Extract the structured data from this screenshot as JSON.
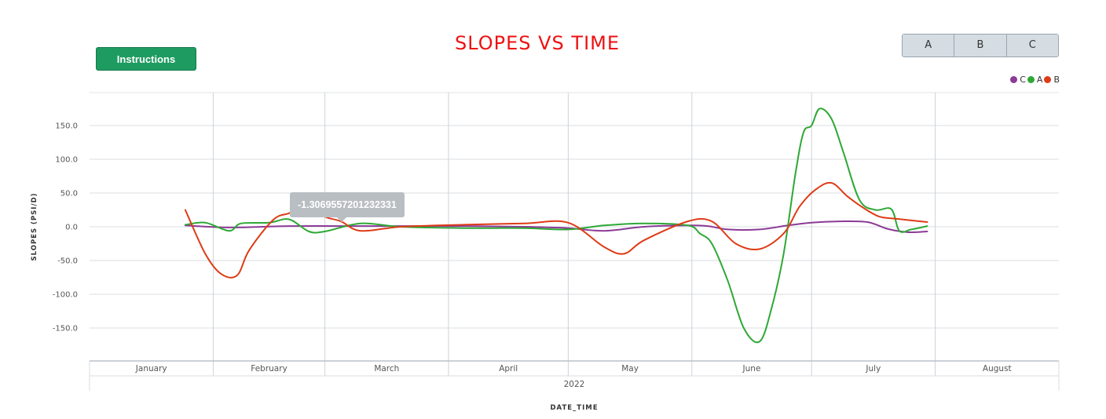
{
  "toolbar": {
    "instructions_label": "Instructions"
  },
  "selector": {
    "buttons": [
      "A",
      "B",
      "C"
    ]
  },
  "chart_data": {
    "type": "line",
    "title": "SLOPES VS TIME",
    "xlabel": "DATE_TIME",
    "ylabel": "SLOPES (PSI/D)",
    "y_ticks": [
      "150.0",
      "100.0",
      "50.0",
      "0.0",
      "-50.0",
      "-100.0",
      "-150.0"
    ],
    "ylim": [
      -200,
      200
    ],
    "x_range": [
      "2022-01-01",
      "2022-09-01"
    ],
    "months": [
      "January",
      "February",
      "March",
      "April",
      "May",
      "June",
      "July",
      "August"
    ],
    "year_label": "2022",
    "grid": true,
    "legend_position": "top-right",
    "legend": [
      {
        "name": "C",
        "color": "#8b3a96"
      },
      {
        "name": "A",
        "color": "#2ea835"
      },
      {
        "name": "B",
        "color": "#dd3b16"
      }
    ],
    "tooltip": "-1.3069557201232331",
    "series": [
      {
        "name": "C",
        "color": "#8b3a96",
        "x": [
          "2022-01-25",
          "2022-02-05",
          "2022-02-20",
          "2022-03-05",
          "2022-03-20",
          "2022-04-05",
          "2022-04-20",
          "2022-05-01",
          "2022-05-10",
          "2022-05-20",
          "2022-05-31",
          "2022-06-05",
          "2022-06-10",
          "2022-06-18",
          "2022-06-25",
          "2022-07-01",
          "2022-07-08",
          "2022-07-15",
          "2022-07-20",
          "2022-07-25",
          "2022-07-30"
        ],
        "y": [
          2,
          -1,
          1,
          1,
          1,
          1,
          0,
          -2,
          -6,
          0,
          2,
          1,
          -4,
          -4,
          2,
          6,
          8,
          7,
          -3,
          -8,
          -7
        ]
      },
      {
        "name": "A",
        "color": "#2ea835",
        "x": [
          "2022-01-25",
          "2022-01-30",
          "2022-02-05",
          "2022-02-08",
          "2022-02-15",
          "2022-02-20",
          "2022-02-25",
          "2022-03-01",
          "2022-03-10",
          "2022-03-20",
          "2022-04-05",
          "2022-04-20",
          "2022-05-01",
          "2022-05-10",
          "2022-05-20",
          "2022-05-31",
          "2022-06-03",
          "2022-06-06",
          "2022-06-10",
          "2022-06-14",
          "2022-06-18",
          "2022-06-21",
          "2022-06-24",
          "2022-06-27",
          "2022-06-29",
          "2022-07-01",
          "2022-07-03",
          "2022-07-06",
          "2022-07-09",
          "2022-07-13",
          "2022-07-17",
          "2022-07-21",
          "2022-07-23",
          "2022-07-26",
          "2022-07-30"
        ],
        "y": [
          3,
          6,
          -6,
          5,
          6,
          11,
          -7,
          -7,
          5,
          0,
          -2,
          -2,
          -4,
          2,
          5,
          2,
          -10,
          -25,
          -80,
          -150,
          -170,
          -120,
          -40,
          80,
          140,
          150,
          175,
          160,
          110,
          40,
          25,
          26,
          -6,
          -4,
          1
        ]
      },
      {
        "name": "B",
        "color": "#dd3b16",
        "x": [
          "2022-01-25",
          "2022-01-30",
          "2022-02-03",
          "2022-02-07",
          "2022-02-10",
          "2022-02-16",
          "2022-02-20",
          "2022-02-25",
          "2022-03-01",
          "2022-03-05",
          "2022-03-10",
          "2022-03-20",
          "2022-04-05",
          "2022-04-20",
          "2022-05-01",
          "2022-05-10",
          "2022-05-15",
          "2022-05-20",
          "2022-05-31",
          "2022-06-06",
          "2022-06-12",
          "2022-06-18",
          "2022-06-24",
          "2022-06-28",
          "2022-07-02",
          "2022-07-06",
          "2022-07-10",
          "2022-07-14",
          "2022-07-18",
          "2022-07-22",
          "2022-07-30"
        ],
        "y": [
          25,
          -40,
          -70,
          -72,
          -35,
          10,
          20,
          30,
          15,
          8,
          -6,
          0,
          3,
          5,
          6,
          -30,
          -40,
          -20,
          8,
          8,
          -25,
          -33,
          -10,
          30,
          55,
          65,
          45,
          28,
          15,
          12,
          7
        ]
      }
    ]
  }
}
